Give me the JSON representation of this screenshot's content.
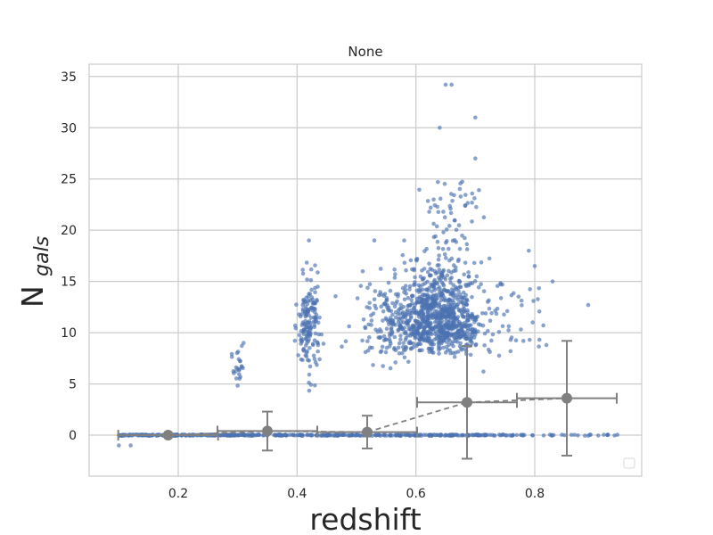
{
  "chart_data": {
    "type": "scatter",
    "title": "None",
    "xlabel": "redshift",
    "ylabel_main": "N",
    "ylabel_sub": "gals",
    "xlim": [
      0.05,
      0.98
    ],
    "ylim": [
      -4.0,
      36.2
    ],
    "xticks": [
      0.2,
      0.4,
      0.6,
      0.8
    ],
    "xtick_labels": [
      "0.2",
      "0.4",
      "0.6",
      "0.8"
    ],
    "yticks": [
      0,
      5,
      10,
      15,
      20,
      25,
      30,
      35
    ],
    "ytick_labels": [
      "0",
      "5",
      "10",
      "15",
      "20",
      "25",
      "30",
      "35"
    ],
    "grid": true,
    "legend": "lower-right (empty)",
    "colors": {
      "points": "#4c72b0",
      "summary": "#808080",
      "grid": "#cccccc",
      "axes_edge": "#cccccc"
    },
    "summary_series": {
      "x": [
        0.183,
        0.35,
        0.518,
        0.686,
        0.854
      ],
      "y": [
        0.0,
        0.4,
        0.3,
        3.2,
        3.6
      ],
      "xerr": [
        0.084,
        0.084,
        0.084,
        0.084,
        0.084
      ],
      "yerr": [
        0.1,
        1.9,
        1.6,
        5.5,
        5.6
      ]
    },
    "scatter_series": [
      {
        "x": [
          0.1,
          0.12
        ],
        "y": [
          -1,
          -1
        ]
      },
      {
        "x": [
          0.3,
          0.31
        ],
        "y": [
          6.5,
          9.0
        ]
      },
      {
        "x": [
          0.42,
          0.43
        ],
        "y": [
          19.0,
          12.0
        ]
      },
      {
        "x": [
          0.53,
          0.64
        ],
        "y": [
          19.0,
          30.0
        ]
      },
      {
        "x": [
          0.65,
          0.66
        ],
        "y": [
          34.2,
          34.2
        ]
      },
      {
        "x": [
          0.7,
          0.7
        ],
        "y": [
          27.0,
          31.0
        ]
      },
      {
        "x": [
          0.79,
          0.8
        ],
        "y": [
          18.0,
          16.5
        ]
      },
      {
        "x": [
          0.89,
          0.83
        ],
        "y": [
          12.7,
          15.0
        ]
      }
    ]
  }
}
